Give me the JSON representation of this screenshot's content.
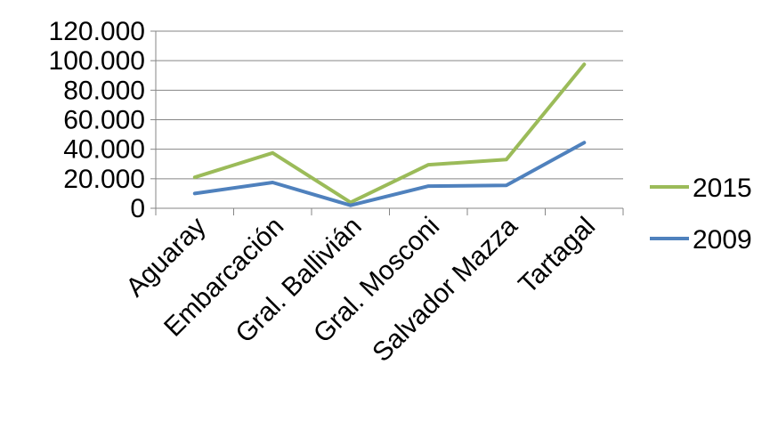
{
  "chart_data": {
    "type": "line",
    "title": "",
    "xlabel": "",
    "ylabel": "",
    "categories": [
      "Aguaray",
      "Embarcación",
      "Gral. Ballivián",
      "Gral. Mosconi",
      "Salvador Mazza",
      "Tartagal"
    ],
    "series": [
      {
        "name": "2015",
        "color": "#9BBB59",
        "values": [
          21000,
          37500,
          4000,
          29500,
          33000,
          97500
        ]
      },
      {
        "name": "2009",
        "color": "#4F81BD",
        "values": [
          10000,
          17500,
          2000,
          15000,
          15500,
          44500
        ]
      }
    ],
    "ylim": [
      0,
      120000
    ],
    "yticks": [
      0,
      20000,
      40000,
      60000,
      80000,
      100000,
      120000
    ],
    "ytick_labels": [
      "0",
      "20.000",
      "40.000",
      "60.000",
      "80.000",
      "100.000",
      "120.000"
    ],
    "grid": true,
    "legend_position": "right"
  }
}
